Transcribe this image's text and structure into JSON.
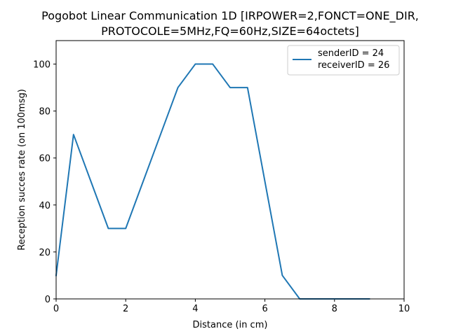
{
  "chart_data": {
    "type": "line",
    "title_line1": "Pogobot Linear Communication 1D [IRPOWER=2,FONCT=ONE_DIR,",
    "title_line2": "PROTOCOLE=5MHz,FQ=60Hz,SIZE=64octets]",
    "xlabel": "Distance (in cm)",
    "ylabel": "Reception succes rate (on 100msg)",
    "xlim": [
      0,
      10
    ],
    "ylim": [
      0,
      110
    ],
    "x_ticks": [
      0,
      2,
      4,
      6,
      8,
      10
    ],
    "y_ticks": [
      0,
      20,
      40,
      60,
      80,
      100
    ],
    "x_tick_labels": [
      "0",
      "2",
      "4",
      "6",
      "8",
      "10"
    ],
    "y_tick_labels": [
      "0",
      "20",
      "40",
      "60",
      "80",
      "100"
    ],
    "grid": false,
    "legend_position": "top-right",
    "legend_lines": [
      "senderID = 24",
      "receiverID = 26"
    ],
    "series": [
      {
        "color": "#1f77b4",
        "x": [
          0,
          0.5,
          1,
          1.5,
          2,
          2.5,
          3,
          3.5,
          4,
          4.5,
          5,
          5.5,
          6,
          6.5,
          7,
          7.5,
          8,
          8.5,
          9
        ],
        "y": [
          10,
          70,
          50,
          30,
          30,
          50,
          70,
          90,
          100,
          100,
          90,
          90,
          50,
          10,
          0,
          0,
          0,
          0,
          0
        ]
      }
    ]
  }
}
